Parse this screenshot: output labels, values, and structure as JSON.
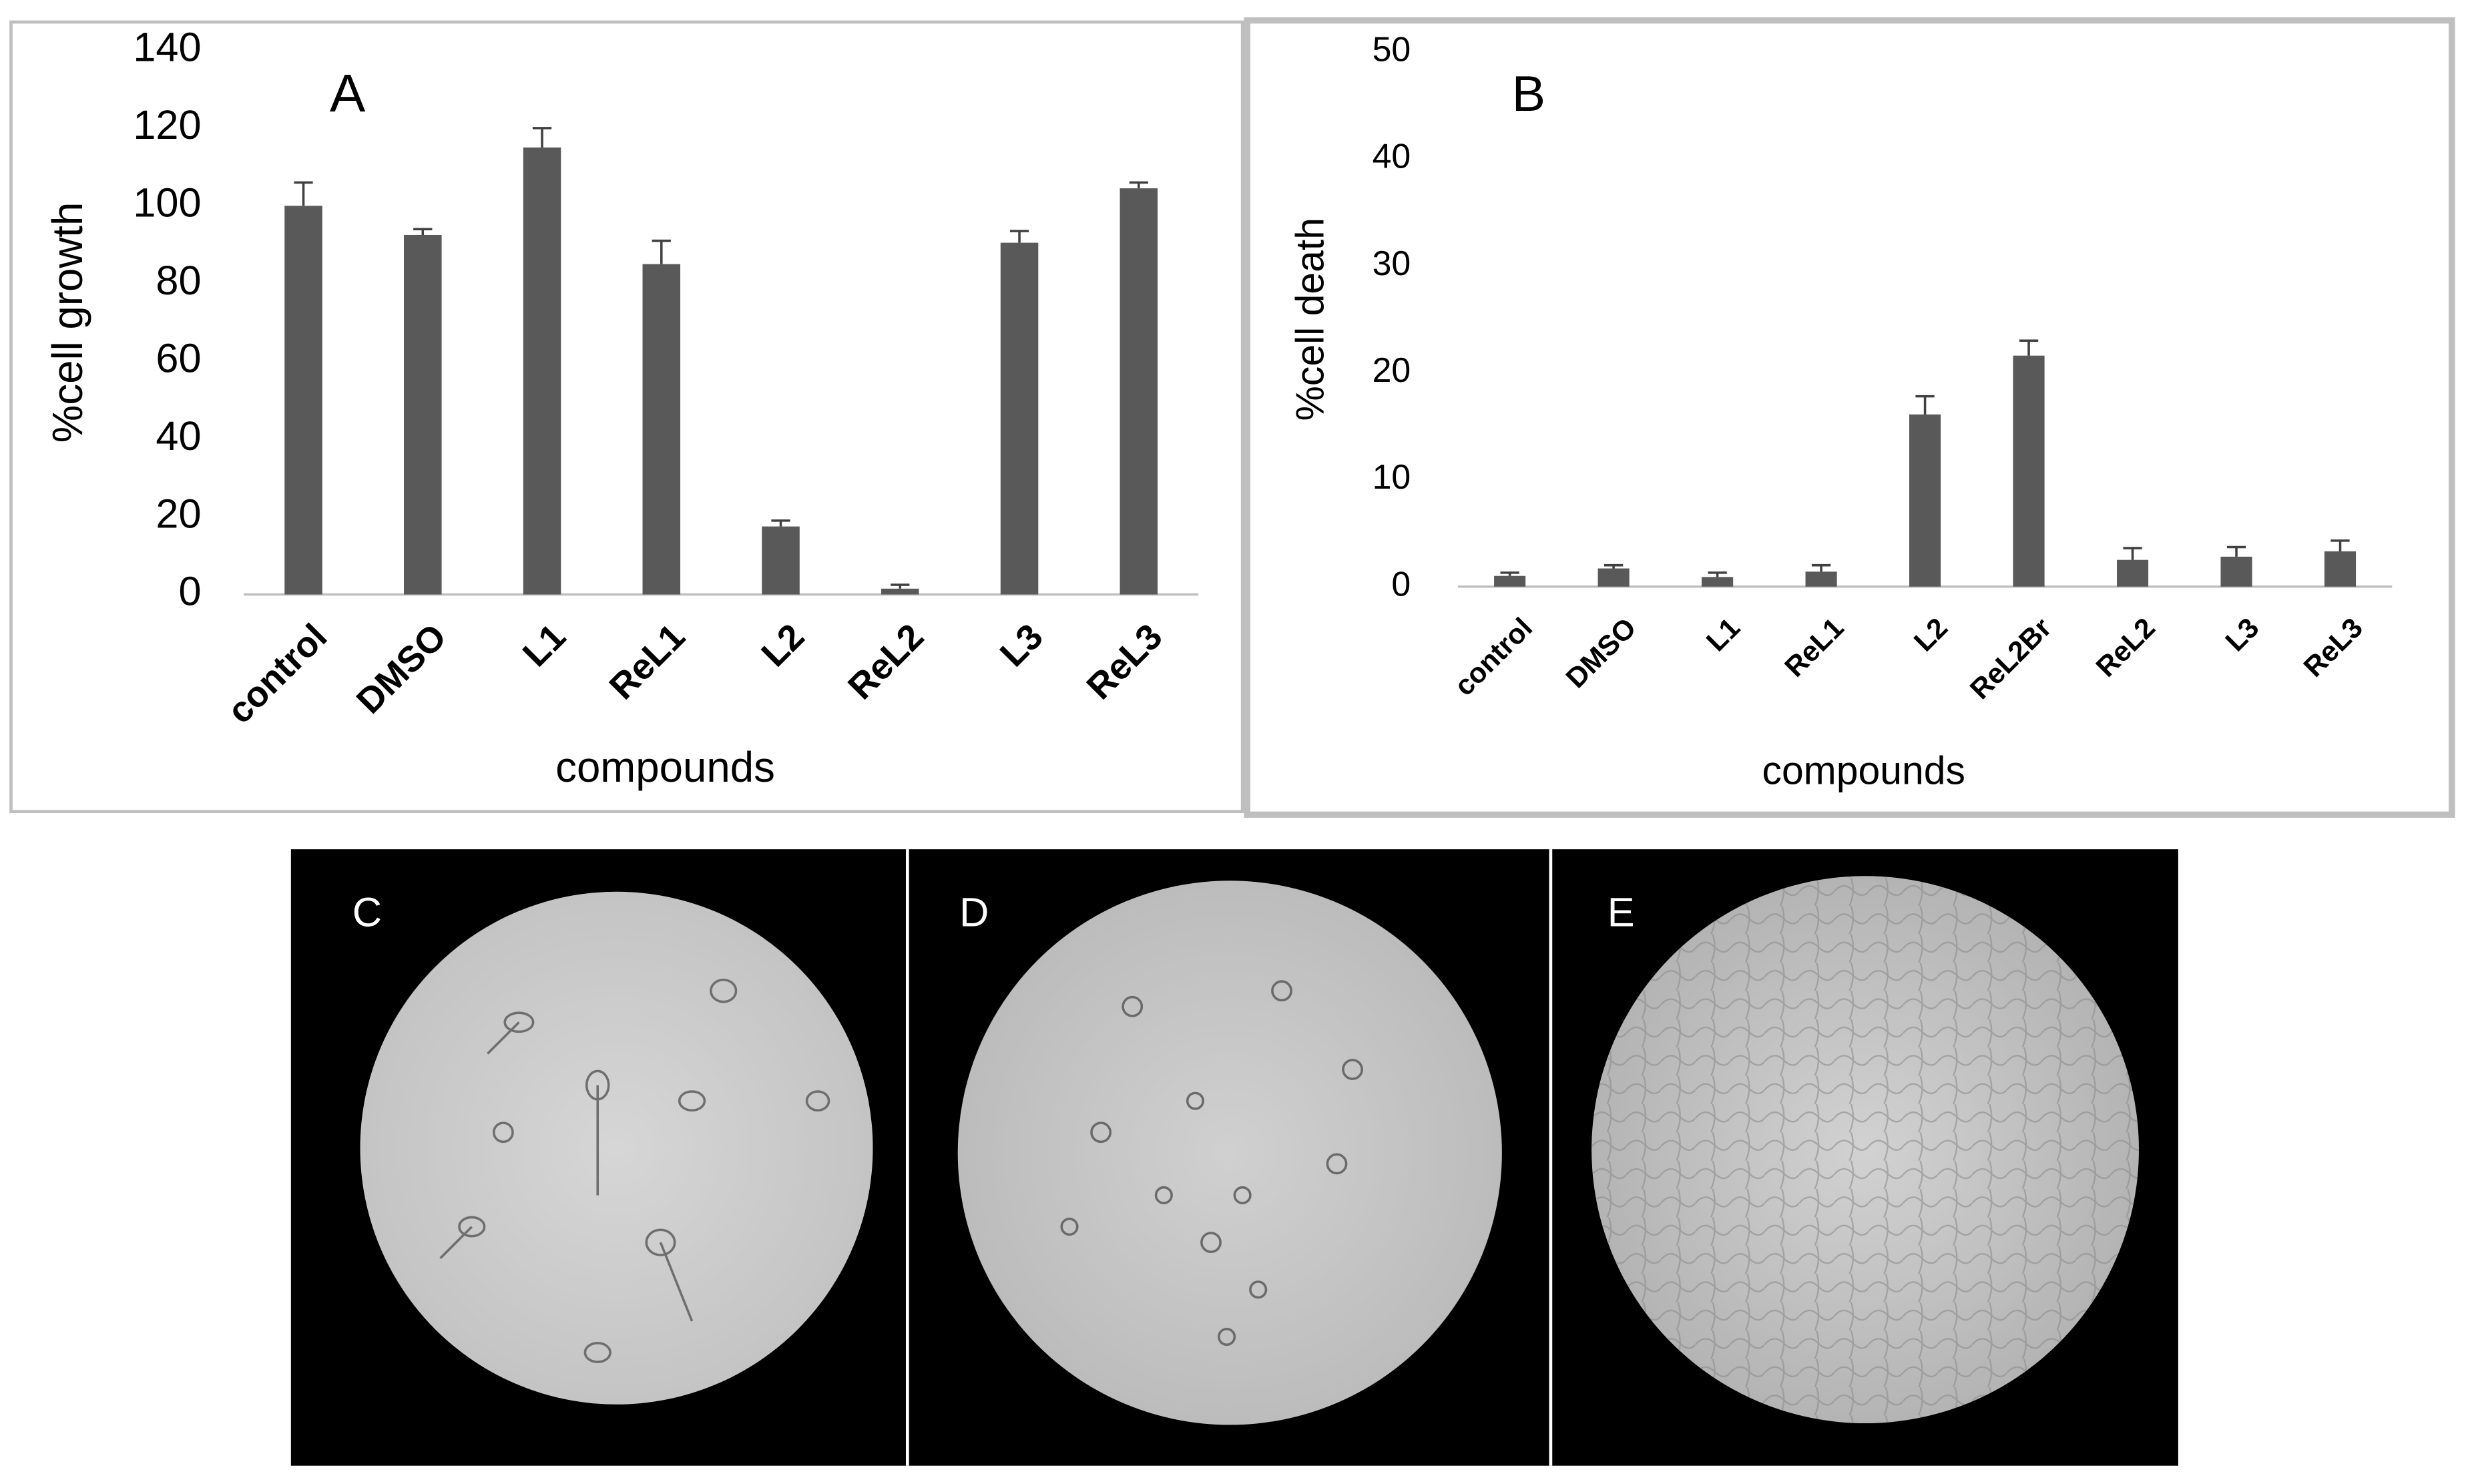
{
  "chart_data": [
    {
      "type": "bar",
      "annotation": "A",
      "x_label": "compounds",
      "y_label": "%cell growth",
      "categories": [
        "control",
        "DMSO",
        "L1",
        "ReL1",
        "L2",
        "ReL2",
        "L3",
        "ReL3"
      ],
      "values": [
        100,
        92.5,
        115,
        85,
        17.5,
        1.5,
        90.5,
        104.5
      ],
      "errors": [
        6,
        1.5,
        5,
        6,
        1.5,
        1,
        3,
        1.5
      ],
      "color": "#595959",
      "ylim": [
        0,
        140
      ],
      "yticks": [
        0,
        20,
        40,
        60,
        80,
        100,
        120,
        140
      ],
      "grid": false
    },
    {
      "type": "bar",
      "annotation": "B",
      "x_label": "compounds",
      "y_label": "%cell death",
      "categories": [
        "control",
        "DMSO",
        "L1",
        "ReL1",
        "L2",
        "ReL2Br",
        "ReL2",
        "L3",
        "ReL3"
      ],
      "values": [
        1,
        1.7,
        0.9,
        1.4,
        16.1,
        21.6,
        2.5,
        2.8,
        3.3
      ],
      "errors": [
        0.3,
        0.3,
        0.4,
        0.6,
        1.7,
        1.4,
        1.1,
        0.9,
        1
      ],
      "color": "#595959",
      "ylim": [
        0,
        50
      ],
      "yticks": [
        0,
        10,
        20,
        30,
        40,
        50
      ],
      "grid": false
    }
  ],
  "image_panels": [
    {
      "label": "C"
    },
    {
      "label": "D"
    },
    {
      "label": "E"
    }
  ]
}
